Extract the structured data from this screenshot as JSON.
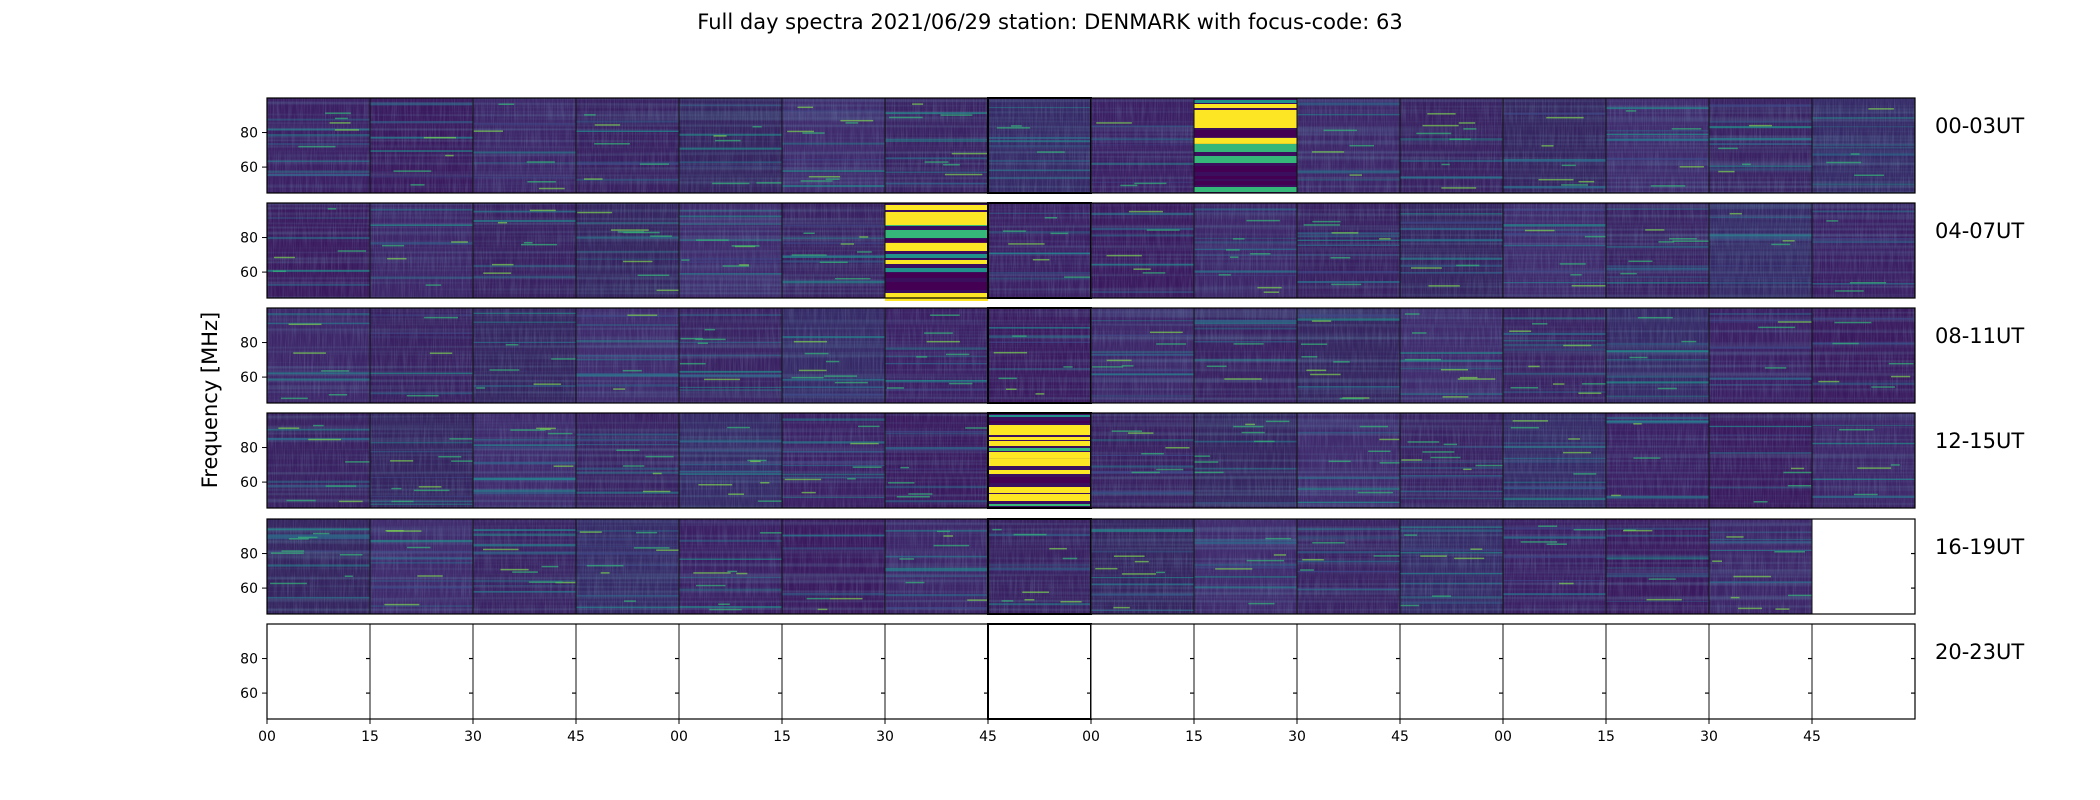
{
  "chart_data": {
    "type": "heatmap",
    "title": "Full day spectra 2021/06/29 station: DENMARK with focus-code: 63",
    "ylabel": "Frequency [MHz]",
    "xlabel": "",
    "colormap": "viridis",
    "panels_per_row": 16,
    "minutes_per_panel": 15,
    "frequency_range_mhz": [
      45,
      100
    ],
    "ytick_values": [
      60,
      80
    ],
    "ytick_labels": [
      "60",
      "80"
    ],
    "xtick_labels": [
      "00",
      "15",
      "30",
      "45",
      "00",
      "15",
      "30",
      "45",
      "00",
      "15",
      "30",
      "45",
      "00",
      "15",
      "30",
      "45"
    ],
    "rows": [
      {
        "label": "00-03UT",
        "panels_with_data": 16,
        "burst_panels": [
          9
        ]
      },
      {
        "label": "04-07UT",
        "panels_with_data": 16,
        "burst_panels": [
          6
        ]
      },
      {
        "label": "08-11UT",
        "panels_with_data": 16,
        "burst_panels": []
      },
      {
        "label": "12-15UT",
        "panels_with_data": 16,
        "burst_panels": [
          7
        ]
      },
      {
        "label": "16-19UT",
        "panels_with_data": 15,
        "burst_panels": []
      },
      {
        "label": "20-23UT",
        "panels_with_data": 0,
        "burst_panels": []
      }
    ]
  }
}
